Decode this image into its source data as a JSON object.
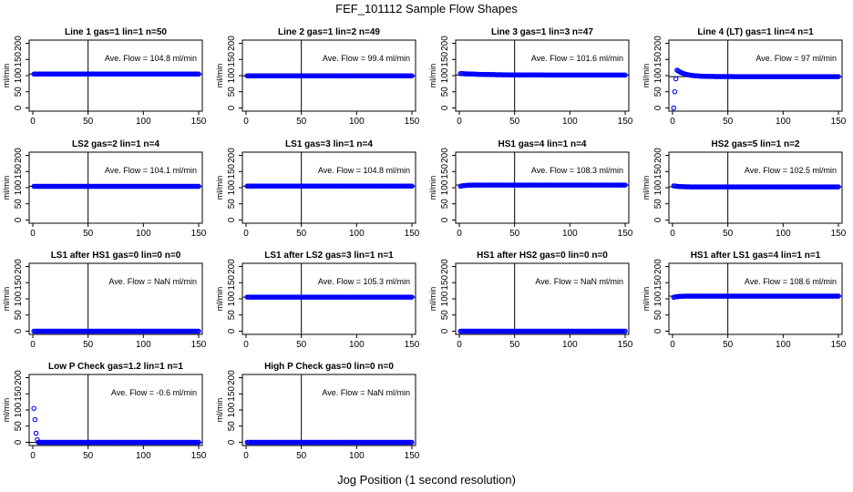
{
  "figure": {
    "title": "FEF_101112  Sample Flow Shapes",
    "xlabel": "Jog Position (1 second resolution)"
  },
  "colors": {
    "points": "#0000ff",
    "axes": "#000000"
  },
  "chart_data": [
    {
      "type": "scatter",
      "title": "Line 1 gas=1 lin=1 n=50",
      "ylabel": "ml/min",
      "annotation": "Ave. Flow = 104.8  ml/min",
      "shape": "flat",
      "avg": 104.8,
      "vline": 50,
      "hline": 104.8,
      "xlim": [
        0,
        150
      ],
      "ylim": [
        -10,
        210
      ],
      "xticks": [
        0,
        50,
        100,
        150
      ],
      "yticks": [
        0,
        50,
        100,
        150,
        200
      ]
    },
    {
      "type": "scatter",
      "title": "Line 2 gas=1 lin=2 n=49",
      "ylabel": "ml/min",
      "annotation": "Ave. Flow = 99.4  ml/min",
      "shape": "flat",
      "avg": 99.4,
      "vline": 50,
      "hline": 99.4,
      "xlim": [
        0,
        150
      ],
      "ylim": [
        -10,
        210
      ],
      "xticks": [
        0,
        50,
        100,
        150
      ],
      "yticks": [
        0,
        50,
        100,
        150,
        200
      ]
    },
    {
      "type": "scatter",
      "title": "Line 3 gas=1 lin=3 n=47",
      "ylabel": "ml/min",
      "annotation": "Ave. Flow = 101.6  ml/min",
      "shape": "slight-decay",
      "avg": 101.6,
      "vline": 50,
      "hline": 101.6,
      "xlim": [
        0,
        150
      ],
      "ylim": [
        -10,
        210
      ],
      "xticks": [
        0,
        50,
        100,
        150
      ],
      "yticks": [
        0,
        50,
        100,
        150,
        200
      ]
    },
    {
      "type": "scatter",
      "title": "Line 4 (LT) gas=1 lin=4 n=1",
      "ylabel": "ml/min",
      "annotation": "Ave. Flow = 97  ml/min",
      "shape": "rise-overshoot",
      "avg": 97,
      "vline": 50,
      "hline": 97,
      "xlim": [
        0,
        150
      ],
      "ylim": [
        -10,
        210
      ],
      "xticks": [
        0,
        50,
        100,
        150
      ],
      "yticks": [
        0,
        50,
        100,
        150,
        200
      ]
    },
    {
      "type": "scatter",
      "title": "LS2 gas=2 lin=1 n=4",
      "ylabel": "ml/min",
      "annotation": "Ave. Flow = 104.1  ml/min",
      "shape": "flat",
      "avg": 104.1,
      "vline": 50,
      "hline": 104.1,
      "xlim": [
        0,
        150
      ],
      "ylim": [
        -10,
        210
      ],
      "xticks": [
        0,
        50,
        100,
        150
      ],
      "yticks": [
        0,
        50,
        100,
        150,
        200
      ]
    },
    {
      "type": "scatter",
      "title": "LS1 gas=3 lin=1 n=4",
      "ylabel": "ml/min",
      "annotation": "Ave. Flow = 104.8  ml/min",
      "shape": "flat",
      "avg": 104.8,
      "vline": 50,
      "hline": 104.8,
      "xlim": [
        0,
        150
      ],
      "ylim": [
        -10,
        210
      ],
      "xticks": [
        0,
        50,
        100,
        150
      ],
      "yticks": [
        0,
        50,
        100,
        150,
        200
      ]
    },
    {
      "type": "scatter",
      "title": "HS1 gas=4 lin=1 n=4",
      "ylabel": "ml/min",
      "annotation": "Ave. Flow = 108.3  ml/min",
      "shape": "small-rise",
      "avg": 108.3,
      "vline": 50,
      "hline": 108.3,
      "xlim": [
        0,
        150
      ],
      "ylim": [
        -10,
        210
      ],
      "xticks": [
        0,
        50,
        100,
        150
      ],
      "yticks": [
        0,
        50,
        100,
        150,
        200
      ]
    },
    {
      "type": "scatter",
      "title": "HS2 gas=5 lin=1 n=2",
      "ylabel": "ml/min",
      "annotation": "Ave. Flow = 102.5  ml/min",
      "shape": "small-drop",
      "avg": 102.5,
      "vline": 50,
      "hline": 102.5,
      "xlim": [
        0,
        150
      ],
      "ylim": [
        -10,
        210
      ],
      "xticks": [
        0,
        50,
        100,
        150
      ],
      "yticks": [
        0,
        50,
        100,
        150,
        200
      ]
    },
    {
      "type": "scatter",
      "title": "LS1 after HS1 gas=0 lin=0 n=0",
      "ylabel": "ml/min",
      "annotation": "Ave. Flow = NaN  ml/min",
      "shape": "zero",
      "avg": 0,
      "vline": 50,
      "hline": null,
      "xlim": [
        0,
        150
      ],
      "ylim": [
        -10,
        210
      ],
      "xticks": [
        0,
        50,
        100,
        150
      ],
      "yticks": [
        0,
        50,
        100,
        150,
        200
      ]
    },
    {
      "type": "scatter",
      "title": "LS1 after LS2 gas=3 lin=1 n=1",
      "ylabel": "ml/min",
      "annotation": "Ave. Flow = 105.3  ml/min",
      "shape": "flat",
      "avg": 105.3,
      "vline": 50,
      "hline": 105.3,
      "xlim": [
        0,
        150
      ],
      "ylim": [
        -10,
        210
      ],
      "xticks": [
        0,
        50,
        100,
        150
      ],
      "yticks": [
        0,
        50,
        100,
        150,
        200
      ]
    },
    {
      "type": "scatter",
      "title": "HS1 after HS2 gas=0 lin=0 n=0",
      "ylabel": "ml/min",
      "annotation": "Ave. Flow = NaN  ml/min",
      "shape": "zero",
      "avg": 0,
      "vline": 50,
      "hline": null,
      "xlim": [
        0,
        150
      ],
      "ylim": [
        -10,
        210
      ],
      "xticks": [
        0,
        50,
        100,
        150
      ],
      "yticks": [
        0,
        50,
        100,
        150,
        200
      ]
    },
    {
      "type": "scatter",
      "title": "HS1 after LS1 gas=4 lin=1 n=1",
      "ylabel": "ml/min",
      "annotation": "Ave. Flow = 108.6  ml/min",
      "shape": "small-rise",
      "avg": 108.6,
      "vline": 50,
      "hline": 108.6,
      "xlim": [
        0,
        150
      ],
      "ylim": [
        -10,
        210
      ],
      "xticks": [
        0,
        50,
        100,
        150
      ],
      "yticks": [
        0,
        50,
        100,
        150,
        200
      ]
    },
    {
      "type": "scatter",
      "title": "Low P Check gas=1.2 lin=1 n=1",
      "ylabel": "ml/min",
      "annotation": "Ave. Flow = -0.6  ml/min",
      "shape": "decay",
      "avg": -0.6,
      "vline": 50,
      "hline": -0.6,
      "xlim": [
        0,
        150
      ],
      "ylim": [
        -10,
        210
      ],
      "xticks": [
        0,
        50,
        100,
        150
      ],
      "yticks": [
        0,
        50,
        100,
        150,
        200
      ]
    },
    {
      "type": "scatter",
      "title": "High P Check gas=0 lin=0 n=0",
      "ylabel": "ml/min",
      "annotation": "Ave. Flow = NaN  ml/min",
      "shape": "zero",
      "avg": 0,
      "vline": 50,
      "hline": null,
      "xlim": [
        0,
        150
      ],
      "ylim": [
        -10,
        210
      ],
      "xticks": [
        0,
        50,
        100,
        150
      ],
      "yticks": [
        0,
        50,
        100,
        150,
        200
      ]
    }
  ]
}
